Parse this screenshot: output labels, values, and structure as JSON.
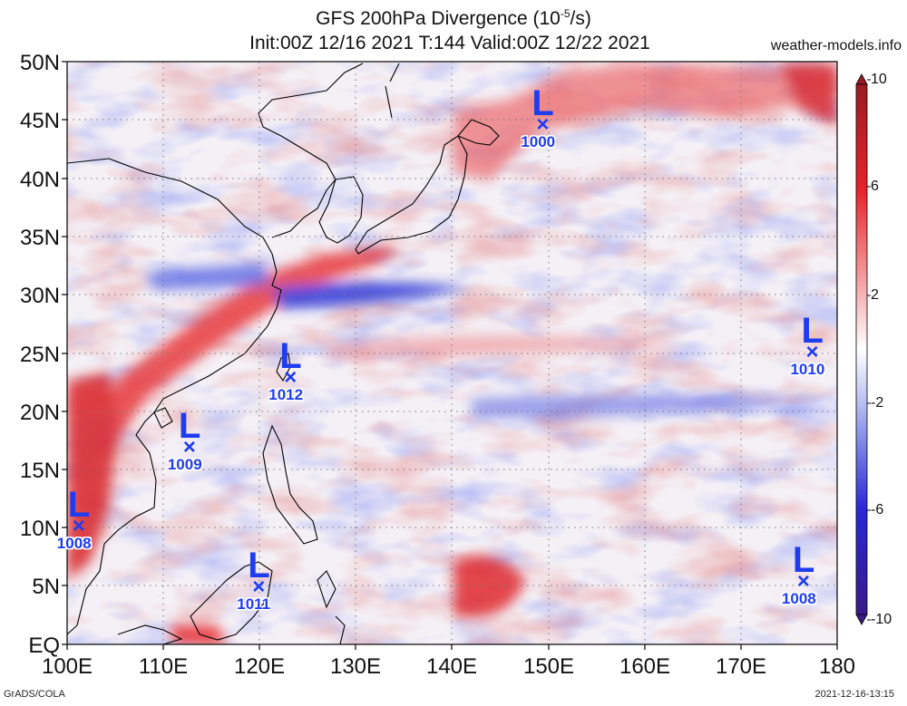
{
  "header": {
    "title_line1_pre": "GFS 200hPa Divergence (10",
    "title_line1_sup": "-5",
    "title_line1_post": "/s)",
    "title_line2": "Init:00Z 12/16 2021 T:144 Valid:00Z 12/22 2021",
    "site": "weather-models.info"
  },
  "footer": {
    "left": "GrADS/COLA",
    "right": "2021-12-16-13:15"
  },
  "map": {
    "lat_labels": [
      "50N",
      "45N",
      "40N",
      "35N",
      "30N",
      "25N",
      "20N",
      "15N",
      "10N",
      "5N",
      "EQ"
    ],
    "lon_labels": [
      "100E",
      "110E",
      "120E",
      "130E",
      "140E",
      "150E",
      "160E",
      "170E",
      "180"
    ],
    "lon_range": [
      100,
      180
    ],
    "lat_range": [
      0,
      50
    ],
    "grid": true
  },
  "colorbar": {
    "ticks": [
      "10",
      "6",
      "2",
      "-2",
      "-6",
      "-10"
    ],
    "min": -10,
    "max": 10,
    "colors": {
      "max": "#9a1b22",
      "strong_pos": "#e8232a",
      "weak_pos": "#f6b6b8",
      "zero": "#ffffff",
      "weak_neg": "#b8c0f0",
      "strong_neg": "#2828d8",
      "min": "#3a1a8a"
    }
  },
  "lows": [
    {
      "letter": "L",
      "pressure": "1000",
      "lon": 149.5,
      "lat": 44.5
    },
    {
      "letter": "L",
      "pressure": "1012",
      "lon": 123.3,
      "lat": 22.8
    },
    {
      "letter": "L",
      "pressure": "1010",
      "lon": 177.5,
      "lat": 25.0
    },
    {
      "letter": "L",
      "pressure": "1009",
      "lon": 112.8,
      "lat": 16.8
    },
    {
      "letter": "L",
      "pressure": "1008",
      "lon": 101.3,
      "lat": 10.0
    },
    {
      "letter": "L",
      "pressure": "1011",
      "lon": 120.0,
      "lat": 4.8
    },
    {
      "letter": "L",
      "pressure": "1008",
      "lon": 176.6,
      "lat": 5.3
    }
  ],
  "low_color": "#1e3cf0"
}
